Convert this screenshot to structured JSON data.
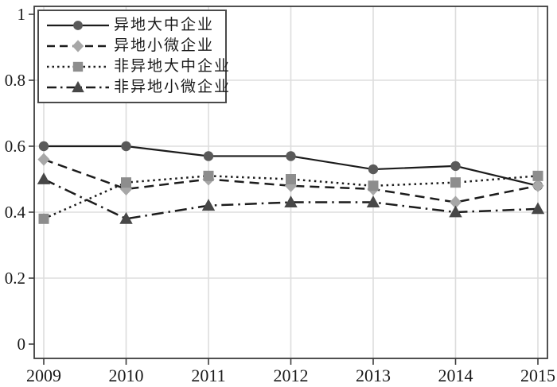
{
  "chart_data": {
    "type": "line",
    "title": "",
    "xlabel": "",
    "ylabel": "",
    "x": [
      2009,
      2010,
      2011,
      2012,
      2013,
      2014,
      2015
    ],
    "x_tick_labels": [
      "2009",
      "2010",
      "2011",
      "2012",
      "2013",
      "2014",
      "2015"
    ],
    "y_ticks": [
      0,
      0.2,
      0.4,
      0.6,
      0.8,
      1
    ],
    "y_tick_labels": [
      "0",
      "0.2",
      "0.4",
      "0.6",
      "0.8",
      "1"
    ],
    "ylim": [
      0,
      1
    ],
    "grid": true,
    "h_gridlines_at": [
      0.2,
      0.4,
      0.6,
      0.8
    ],
    "legend_position": "top-left",
    "series": [
      {
        "name": "异地大中企业",
        "marker": "circle",
        "line_style": "solid",
        "line_color": "#1c1c1c",
        "marker_color": "#5a5a5a",
        "values": [
          0.6,
          0.6,
          0.57,
          0.57,
          0.53,
          0.54,
          0.48
        ]
      },
      {
        "name": "异地小微企业",
        "marker": "diamond",
        "line_style": "dashed",
        "line_color": "#1c1c1c",
        "marker_color": "#a7a7a7",
        "values": [
          0.56,
          0.47,
          0.5,
          0.48,
          0.47,
          0.43,
          0.48
        ]
      },
      {
        "name": "非异地大中企业",
        "marker": "square",
        "line_style": "dotted",
        "line_color": "#1c1c1c",
        "marker_color": "#8d8d8d",
        "values": [
          0.38,
          0.49,
          0.51,
          0.5,
          0.48,
          0.49,
          0.51
        ]
      },
      {
        "name": "非异地小微企业",
        "marker": "triangle",
        "line_style": "dashdot",
        "line_color": "#1c1c1c",
        "marker_color": "#474747",
        "values": [
          0.5,
          0.38,
          0.42,
          0.43,
          0.43,
          0.4,
          0.41
        ]
      }
    ],
    "colors": {
      "background": "#ffffff",
      "grid": "#dddddd",
      "border": "#3d3d3d",
      "tick": "#3d3d3d",
      "text": "#1a1a1a"
    }
  }
}
